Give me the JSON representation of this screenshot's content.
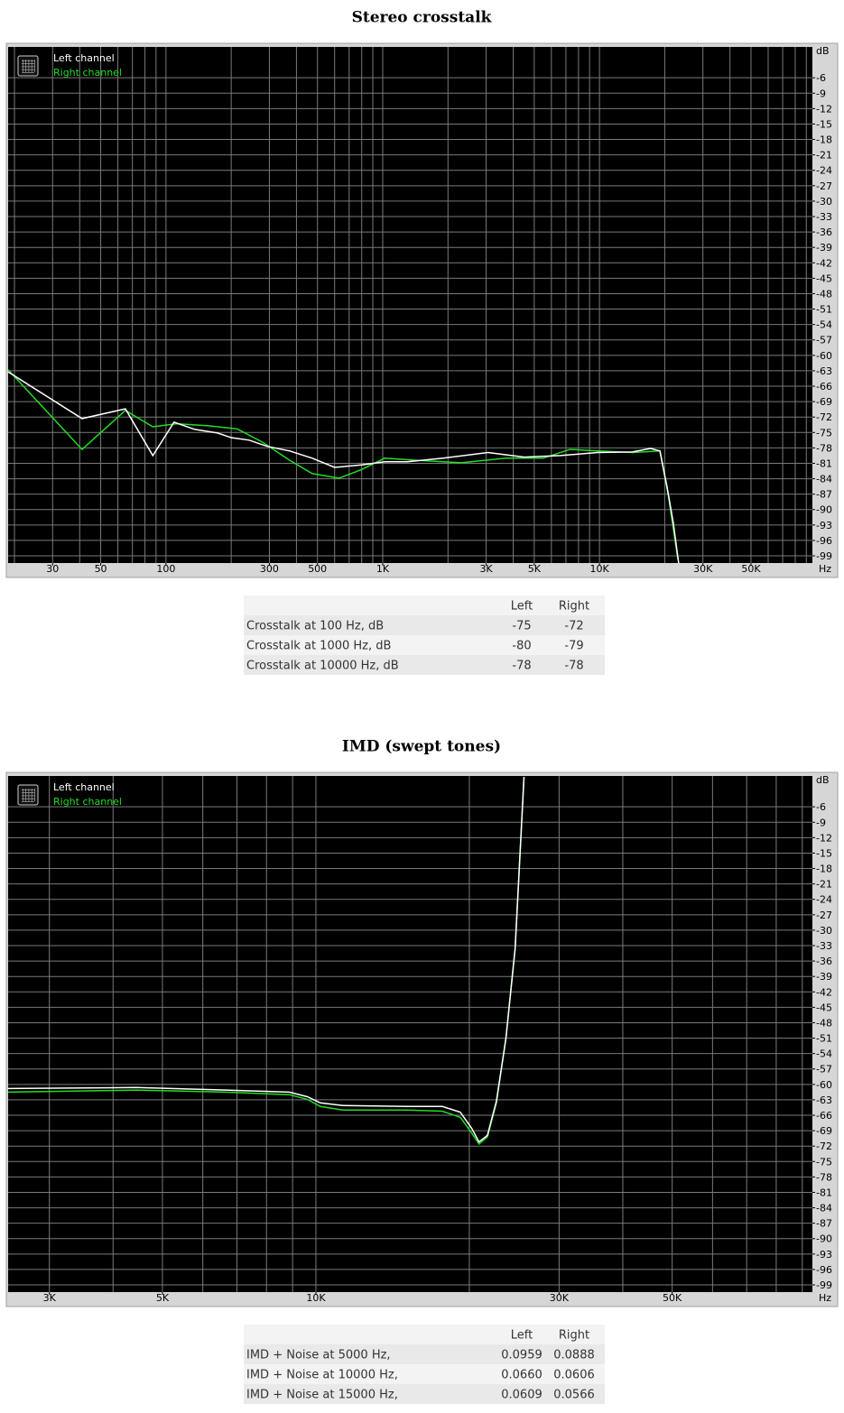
{
  "chart_data": [
    {
      "type": "line",
      "title": "Stereo crosstalk",
      "xscale": "log",
      "x_unit": "Hz",
      "y_unit": "dB",
      "xlim": [
        18.7,
        96000
      ],
      "ylim": [
        -100.4,
        0
      ],
      "xticks": [
        30,
        50,
        100,
        300,
        500,
        {
          "value": 1000,
          "label": "1K"
        },
        {
          "value": 3000,
          "label": "3K"
        },
        {
          "value": 5000,
          "label": "5K"
        },
        {
          "value": 10000,
          "label": "10K"
        },
        {
          "value": 30000,
          "label": "30K"
        },
        {
          "value": 50000,
          "label": "50K"
        }
      ],
      "xgrid": [
        20,
        30,
        40,
        50,
        60,
        70,
        80,
        90,
        100,
        200,
        300,
        400,
        500,
        600,
        700,
        800,
        900,
        1000,
        2000,
        3000,
        4000,
        5000,
        6000,
        7000,
        8000,
        9000,
        10000,
        20000,
        30000,
        40000,
        50000,
        60000,
        70000,
        80000,
        90000
      ],
      "yticks": [
        -6,
        -9,
        -12,
        -15,
        -18,
        -21,
        -24,
        -27,
        -30,
        -33,
        -36,
        -39,
        -42,
        -45,
        -48,
        -51,
        -54,
        -57,
        -60,
        -63,
        -66,
        -69,
        -72,
        -75,
        -78,
        -81,
        -84,
        -87,
        -90,
        -93,
        -96,
        -99
      ],
      "grid": true,
      "series": [
        {
          "name": "Left channel",
          "color": "#ffffff",
          "x": [
            18.7,
            41,
            65,
            87,
            109,
            136,
            173,
            200,
            242,
            293,
            372,
            473,
            600,
            800,
            1020,
            1300,
            1900,
            3060,
            4500,
            6600,
            9800,
            14200,
            17200,
            19000,
            20500,
            21900,
            23200
          ],
          "values": [
            -63.2,
            -72.3,
            -70.4,
            -79.5,
            -73.0,
            -74.4,
            -75.1,
            -76.0,
            -76.5,
            -77.7,
            -78.6,
            -80.0,
            -81.8,
            -81.3,
            -80.7,
            -80.7,
            -80.0,
            -78.9,
            -79.8,
            -79.5,
            -78.9,
            -78.8,
            -78.1,
            -78.6,
            -85.6,
            -92.6,
            -100.5
          ]
        },
        {
          "name": "Right channel",
          "color": "#22dd22",
          "x": [
            18.7,
            41,
            65,
            87,
            112,
            157,
            213,
            279,
            372,
            473,
            630,
            800,
            1020,
            1430,
            2300,
            3700,
            5500,
            7300,
            9800,
            14200,
            19000,
            20800,
            23000
          ],
          "values": [
            -62.8,
            -78.3,
            -70.7,
            -73.9,
            -73.3,
            -73.7,
            -74.3,
            -76.9,
            -80.4,
            -83.0,
            -83.9,
            -82.2,
            -80.0,
            -80.4,
            -80.9,
            -80.0,
            -80.0,
            -78.3,
            -78.6,
            -78.9,
            -78.6,
            -87.4,
            -99.7
          ]
        }
      ]
    },
    {
      "type": "line",
      "title": "IMD (swept tones)",
      "xscale": "log",
      "x_unit": "Hz",
      "y_unit": "dB",
      "xlim": [
        2490,
        94200
      ],
      "ylim": [
        -100.4,
        0
      ],
      "xticks": [
        {
          "value": 3000,
          "label": "3K"
        },
        {
          "value": 5000,
          "label": "5K"
        },
        {
          "value": 10000,
          "label": "10K"
        },
        {
          "value": 30000,
          "label": "30K"
        },
        {
          "value": 50000,
          "label": "50K"
        }
      ],
      "xgrid": [
        3000,
        4000,
        5000,
        6000,
        7000,
        8000,
        9000,
        10000,
        20000,
        30000,
        40000,
        50000,
        60000,
        70000,
        80000,
        90000
      ],
      "yticks": [
        -6,
        -9,
        -12,
        -15,
        -18,
        -21,
        -24,
        -27,
        -30,
        -33,
        -36,
        -39,
        -42,
        -45,
        -48,
        -51,
        -54,
        -57,
        -60,
        -63,
        -66,
        -69,
        -72,
        -75,
        -78,
        -81,
        -84,
        -87,
        -90,
        -93,
        -96,
        -99
      ],
      "grid": true,
      "series": [
        {
          "name": "Left channel",
          "color": "#ffffff",
          "x": [
            2490,
            4440,
            6670,
            8870,
            9620,
            10200,
            11300,
            15100,
            17700,
            19200,
            20200,
            20900,
            21700,
            22600,
            23600,
            24600,
            25600
          ],
          "values": [
            -60.8,
            -60.6,
            -61.1,
            -61.5,
            -62.4,
            -63.6,
            -64.1,
            -64.3,
            -64.3,
            -65.4,
            -68.5,
            -71.2,
            -69.9,
            -63.3,
            -51.0,
            -33.5,
            -0.2
          ]
        },
        {
          "name": "Right channel",
          "color": "#22dd22",
          "x": [
            2490,
            4440,
            6670,
            8870,
            9620,
            10200,
            11300,
            15100,
            17700,
            19200,
            20200,
            20900,
            21700,
            22600,
            23600,
            24600,
            25600
          ],
          "values": [
            -61.5,
            -61.1,
            -61.5,
            -62.0,
            -62.9,
            -64.3,
            -65.0,
            -65.0,
            -65.2,
            -66.4,
            -69.4,
            -71.6,
            -70.2,
            -63.6,
            -51.0,
            -33.5,
            -0.2
          ]
        }
      ]
    }
  ],
  "tables": [
    {
      "columns": [
        "Left",
        "Right"
      ],
      "rows": [
        {
          "label": "Crosstalk at 100 Hz, dB",
          "values": [
            "-75",
            "-72"
          ]
        },
        {
          "label": "Crosstalk at 1000 Hz, dB",
          "values": [
            "-80",
            "-79"
          ]
        },
        {
          "label": "Crosstalk at 10000 Hz, dB",
          "values": [
            "-78",
            "-78"
          ]
        }
      ]
    },
    {
      "columns": [
        "Left",
        "Right"
      ],
      "rows": [
        {
          "label": "IMD + Noise at 5000 Hz,",
          "values": [
            "0.0959",
            "0.0888"
          ]
        },
        {
          "label": "IMD + Noise at 10000 Hz,",
          "values": [
            "0.0660",
            "0.0606"
          ]
        },
        {
          "label": "IMD + Noise at 15000 Hz,",
          "values": [
            "0.0609",
            "0.0566"
          ]
        }
      ]
    }
  ]
}
